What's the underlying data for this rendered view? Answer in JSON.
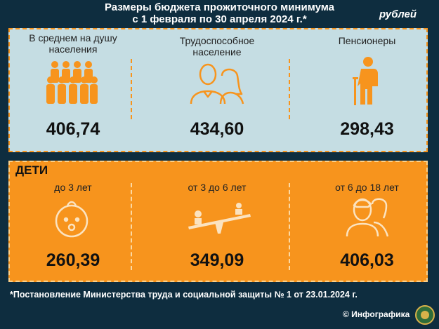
{
  "header": {
    "title_line1": "Размеры бюджета прожиточного минимума",
    "title_line2": "с 1 февраля по 30 апреля 2024 г.*",
    "currency": "рублей"
  },
  "adults": {
    "items": [
      {
        "label_line1": "В среднем на душу",
        "label_line2": "населения",
        "value": "406,74",
        "icon": "people-group-icon"
      },
      {
        "label_line1": "Трудоспособное",
        "label_line2": "население",
        "value": "434,60",
        "icon": "couple-icon"
      },
      {
        "label_line1": "Пенсионеры",
        "label_line2": "",
        "value": "298,43",
        "icon": "elderly-person-icon"
      }
    ]
  },
  "children": {
    "title": "ДЕТИ",
    "items": [
      {
        "label": "до 3 лет",
        "value": "260,39",
        "icon": "baby-icon"
      },
      {
        "label": "от 3 до 6 лет",
        "value": "349,09",
        "icon": "seesaw-icon"
      },
      {
        "label": "от 6 до 18 лет",
        "value": "406,03",
        "icon": "teenagers-icon"
      }
    ]
  },
  "footer": {
    "footnote": "*Постановление Министерства труда и социальной защиты № 1 от 23.01.2024 г.",
    "credit": "© Инфографика"
  },
  "colors": {
    "background": "#0e2d3f",
    "accent": "#f7941d",
    "panel_light": "#c5dde3"
  }
}
